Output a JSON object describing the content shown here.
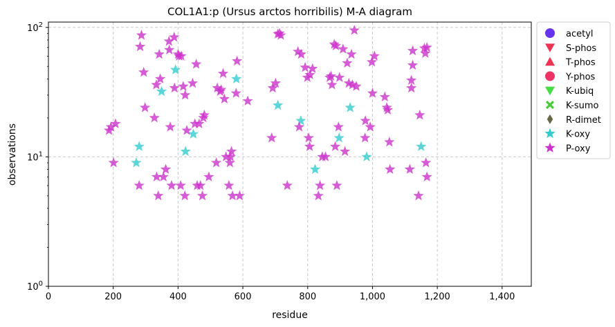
{
  "chart_data": {
    "type": "scatter",
    "title": "COL1A1:p (Ursus arctos horribilis) M-A diagram",
    "xlabel": "residue",
    "ylabel": "observations",
    "xlim": [
      0,
      1490
    ],
    "ylim": [
      1,
      110
    ],
    "yscale": "log",
    "x_ticks": [
      0,
      200,
      400,
      600,
      800,
      1000,
      1200,
      1400
    ],
    "x_tick_labels": [
      "0",
      "200",
      "400",
      "600",
      "800",
      "1,000",
      "1,200",
      "1,400"
    ],
    "y_ticks": [
      1,
      10,
      100
    ],
    "y_tick_labels": [
      "10^0",
      "10^1",
      "10^2"
    ],
    "grid": true,
    "legend_position": "outside-right",
    "legend": [
      {
        "name": "acetyl",
        "marker": "circle",
        "color": "#6633ee"
      },
      {
        "name": "S-phos",
        "marker": "triangle-down",
        "color": "#ee3355"
      },
      {
        "name": "T-phos",
        "marker": "triangle-up",
        "color": "#ee3355"
      },
      {
        "name": "Y-phos",
        "marker": "circle",
        "color": "#ee3366"
      },
      {
        "name": "K-ubiq",
        "marker": "triangle-down",
        "color": "#44dd44"
      },
      {
        "name": "K-sumo",
        "marker": "x",
        "color": "#44cc33"
      },
      {
        "name": "R-dimet",
        "marker": "diamond",
        "color": "#666644"
      },
      {
        "name": "K-oxy",
        "marker": "star",
        "color": "#33cccc"
      },
      {
        "name": "P-oxy",
        "marker": "star",
        "color": "#cc33cc"
      }
    ],
    "series": [
      {
        "name": "K-oxy",
        "color": "#33cccc",
        "points": [
          [
            271,
            9
          ],
          [
            280,
            12
          ],
          [
            349,
            32
          ],
          [
            392,
            47
          ],
          [
            423,
            11
          ],
          [
            447,
            15
          ],
          [
            580,
            40
          ],
          [
            708,
            25
          ],
          [
            779,
            19
          ],
          [
            823,
            8
          ],
          [
            897,
            14
          ],
          [
            931,
            24
          ],
          [
            982,
            10
          ],
          [
            1150,
            12
          ]
        ]
      },
      {
        "name": "P-oxy",
        "color": "#cc33cc",
        "points": [
          [
            187,
            16
          ],
          [
            193,
            17
          ],
          [
            201,
            9
          ],
          [
            207,
            18
          ],
          [
            280,
            6
          ],
          [
            283,
            71
          ],
          [
            287,
            87
          ],
          [
            294,
            45
          ],
          [
            298,
            24
          ],
          [
            327,
            20
          ],
          [
            333,
            36
          ],
          [
            334,
            7
          ],
          [
            339,
            5
          ],
          [
            342,
            62
          ],
          [
            345,
            40
          ],
          [
            355,
            7
          ],
          [
            362,
            8
          ],
          [
            372,
            78
          ],
          [
            373,
            67
          ],
          [
            376,
            17
          ],
          [
            380,
            6
          ],
          [
            388,
            84
          ],
          [
            389,
            34
          ],
          [
            400,
            62
          ],
          [
            403,
            60
          ],
          [
            408,
            6
          ],
          [
            410,
            60
          ],
          [
            416,
            35
          ],
          [
            421,
            5
          ],
          [
            422,
            30
          ],
          [
            427,
            16
          ],
          [
            445,
            37
          ],
          [
            452,
            18
          ],
          [
            456,
            52
          ],
          [
            459,
            6
          ],
          [
            465,
            18
          ],
          [
            469,
            6
          ],
          [
            475,
            5
          ],
          [
            478,
            20
          ],
          [
            481,
            21
          ],
          [
            495,
            7
          ],
          [
            518,
            9
          ],
          [
            521,
            34
          ],
          [
            530,
            32
          ],
          [
            533,
            33
          ],
          [
            539,
            44
          ],
          [
            543,
            28
          ],
          [
            548,
            10
          ],
          [
            557,
            6
          ],
          [
            560,
            9
          ],
          [
            562,
            10
          ],
          [
            565,
            11
          ],
          [
            568,
            5
          ],
          [
            579,
            31
          ],
          [
            582,
            55
          ],
          [
            590,
            5
          ],
          [
            615,
            27
          ],
          [
            689,
            14
          ],
          [
            692,
            34
          ],
          [
            701,
            37
          ],
          [
            708,
            89
          ],
          [
            713,
            90
          ],
          [
            717,
            87
          ],
          [
            737,
            6
          ],
          [
            770,
            65
          ],
          [
            774,
            17
          ],
          [
            780,
            62
          ],
          [
            792,
            49
          ],
          [
            799,
            41
          ],
          [
            803,
            14
          ],
          [
            806,
            12
          ],
          [
            807,
            43
          ],
          [
            815,
            48
          ],
          [
            833,
            5
          ],
          [
            838,
            6
          ],
          [
            845,
            10
          ],
          [
            855,
            10
          ],
          [
            868,
            41
          ],
          [
            872,
            42
          ],
          [
            875,
            36
          ],
          [
            882,
            74
          ],
          [
            885,
            12
          ],
          [
            887,
            72
          ],
          [
            890,
            6
          ],
          [
            895,
            17
          ],
          [
            898,
            41
          ],
          [
            909,
            68
          ],
          [
            915,
            11
          ],
          [
            922,
            53
          ],
          [
            927,
            37
          ],
          [
            935,
            62
          ],
          [
            938,
            36
          ],
          [
            944,
            95
          ],
          [
            950,
            35
          ],
          [
            977,
            14
          ],
          [
            978,
            19
          ],
          [
            993,
            17
          ],
          [
            998,
            54
          ],
          [
            1000,
            31
          ],
          [
            1006,
            60
          ],
          [
            1038,
            29
          ],
          [
            1044,
            24
          ],
          [
            1047,
            23
          ],
          [
            1052,
            13
          ],
          [
            1054,
            8
          ],
          [
            1115,
            8
          ],
          [
            1120,
            34
          ],
          [
            1120,
            39
          ],
          [
            1124,
            66
          ],
          [
            1124,
            51
          ],
          [
            1142,
            5
          ],
          [
            1146,
            21
          ],
          [
            1160,
            69
          ],
          [
            1163,
            63
          ],
          [
            1165,
            9
          ],
          [
            1168,
            7
          ],
          [
            1168,
            70
          ]
        ]
      }
    ]
  }
}
